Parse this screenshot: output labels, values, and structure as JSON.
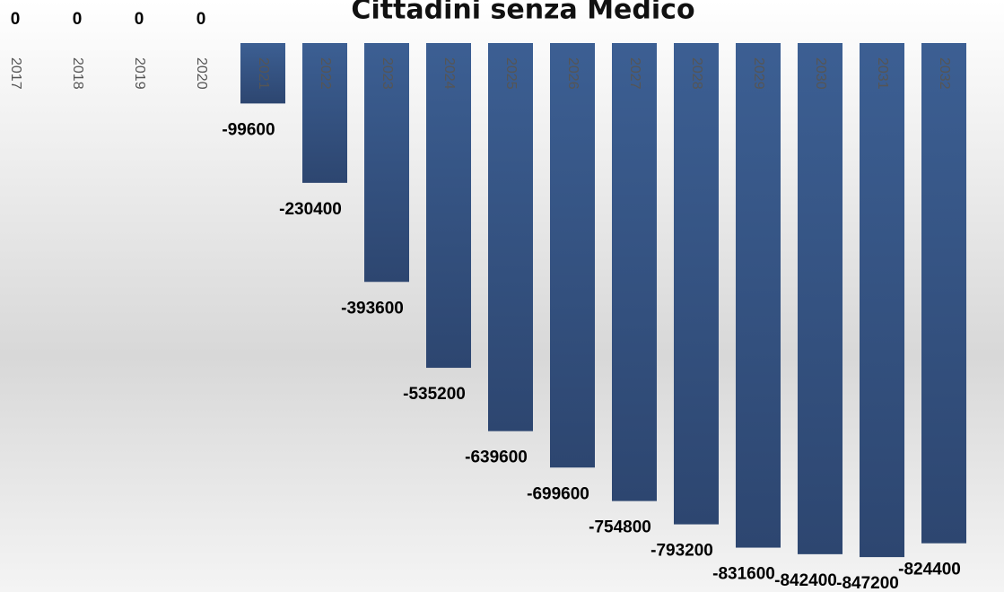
{
  "chart_data": {
    "type": "bar",
    "title": "Cittadini senza Medico",
    "categories": [
      "2017",
      "2018",
      "2019",
      "2020",
      "2021",
      "2022",
      "2023",
      "2024",
      "2025",
      "2026",
      "2027",
      "2028",
      "2029",
      "2030",
      "2031",
      "2032"
    ],
    "values": [
      0,
      0,
      0,
      0,
      -99600,
      -230400,
      -393600,
      -535200,
      -639600,
      -699600,
      -754800,
      -793200,
      -831600,
      -842400,
      -847200,
      -824400
    ],
    "color": "#36588a",
    "ylim": [
      -850000,
      0
    ]
  }
}
